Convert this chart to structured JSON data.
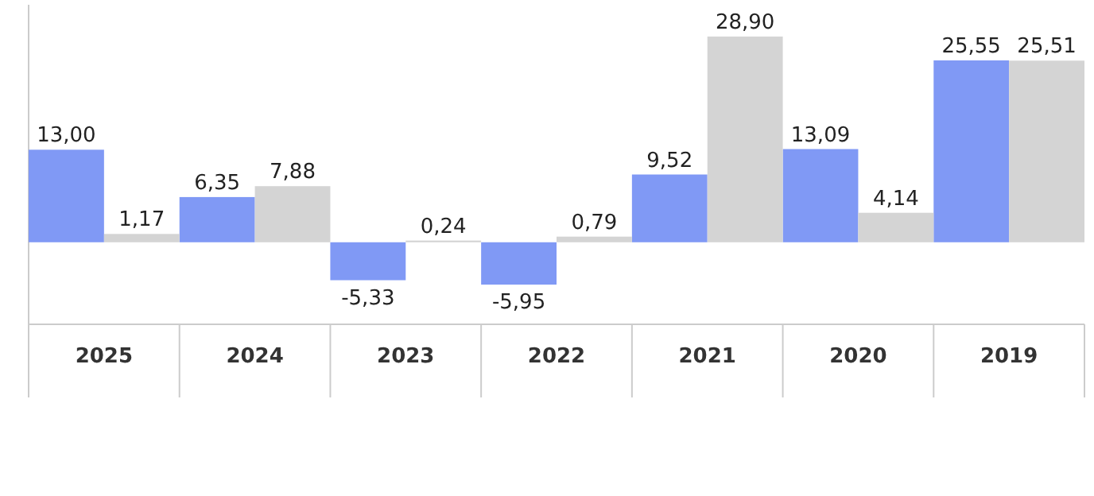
{
  "chart_data": {
    "type": "bar",
    "categories": [
      "2025",
      "2024",
      "2023",
      "2022",
      "2021",
      "2020",
      "2019"
    ],
    "series": [
      {
        "color": "#8099f5",
        "values": [
          13.0,
          6.35,
          -5.33,
          -5.95,
          9.52,
          13.09,
          25.55
        ],
        "value_labels": [
          "13,00",
          "6,35",
          "-5,33",
          "-5,95",
          "9,52",
          "13,09",
          "25,55"
        ]
      },
      {
        "color": "#d4d4d4",
        "values": [
          1.17,
          7.88,
          0.24,
          0.79,
          28.9,
          4.14,
          25.51
        ],
        "value_labels": [
          "1,17",
          "7,88",
          "0,24",
          "0,79",
          "28,90",
          "4,14",
          "25,51"
        ]
      }
    ],
    "grid": false
  }
}
